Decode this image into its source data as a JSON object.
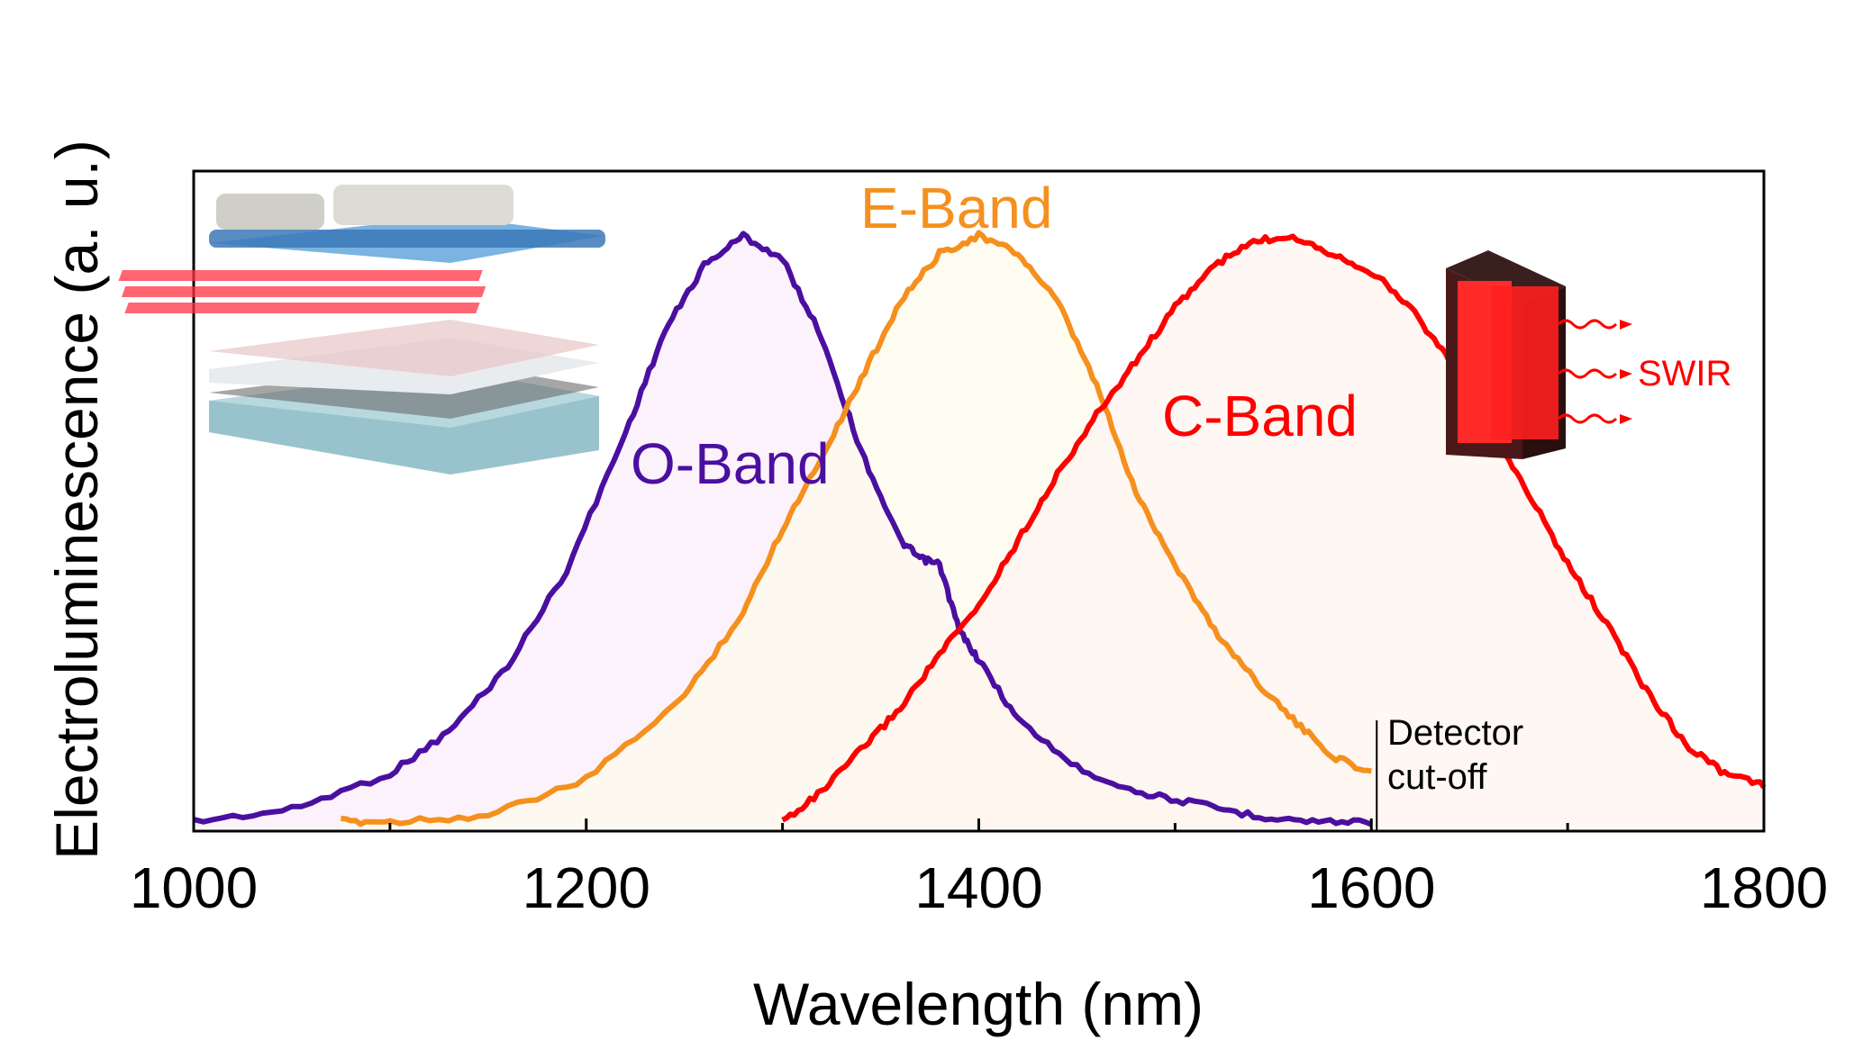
{
  "chart_data": {
    "type": "line",
    "xlabel": "Wavelength (nm)",
    "ylabel": "Electroluminescence (a. u.)",
    "xlim": [
      1000,
      1800
    ],
    "ylim": [
      0,
      1.0
    ],
    "xticks": [
      "1000",
      "1200",
      "1400",
      "1600",
      "1800"
    ],
    "y_ticks_shown": false,
    "grid": false,
    "series": [
      {
        "name": "O-Band",
        "color": "#4b0fa0",
        "fill": "#fbeefa",
        "x": [
          1000,
          1050,
          1100,
          1130,
          1160,
          1190,
          1220,
          1240,
          1260,
          1280,
          1300,
          1320,
          1340,
          1360,
          1370,
          1380,
          1390,
          1400,
          1420,
          1450,
          1480,
          1510,
          1540,
          1570,
          1600
        ],
        "y": [
          0.01,
          0.03,
          0.09,
          0.16,
          0.27,
          0.43,
          0.66,
          0.83,
          0.94,
          0.99,
          0.95,
          0.82,
          0.63,
          0.48,
          0.45,
          0.44,
          0.33,
          0.28,
          0.18,
          0.1,
          0.06,
          0.04,
          0.02,
          0.01,
          0.01
        ]
      },
      {
        "name": "E-Band",
        "color": "#f5901e",
        "fill": "#fdfbec",
        "x": [
          1075,
          1100,
          1150,
          1200,
          1250,
          1280,
          1300,
          1320,
          1340,
          1360,
          1380,
          1400,
          1420,
          1440,
          1460,
          1480,
          1500,
          1520,
          1540,
          1560,
          1580,
          1600
        ],
        "y": [
          0.01,
          0.01,
          0.02,
          0.08,
          0.22,
          0.36,
          0.5,
          0.62,
          0.75,
          0.88,
          0.96,
          0.99,
          0.96,
          0.88,
          0.74,
          0.56,
          0.44,
          0.33,
          0.25,
          0.18,
          0.12,
          0.09
        ]
      },
      {
        "name": "C-Band",
        "color": "#ff0000",
        "fill": "#fdf4ef",
        "x": [
          1300,
          1320,
          1340,
          1360,
          1380,
          1400,
          1420,
          1440,
          1460,
          1480,
          1500,
          1520,
          1540,
          1560,
          1580,
          1600,
          1620,
          1640,
          1660,
          1680,
          1700,
          1720,
          1740,
          1760,
          1780,
          1800
        ],
        "y": [
          0.01,
          0.06,
          0.13,
          0.2,
          0.29,
          0.37,
          0.48,
          0.59,
          0.69,
          0.78,
          0.87,
          0.94,
          0.98,
          0.99,
          0.96,
          0.93,
          0.87,
          0.78,
          0.67,
          0.56,
          0.44,
          0.34,
          0.23,
          0.14,
          0.09,
          0.07
        ]
      }
    ],
    "annotations": {
      "detector_cutoff": {
        "x": 1600,
        "text_line1": "Detector",
        "text_line2": "cut-off"
      },
      "swir": "SWIR"
    }
  }
}
